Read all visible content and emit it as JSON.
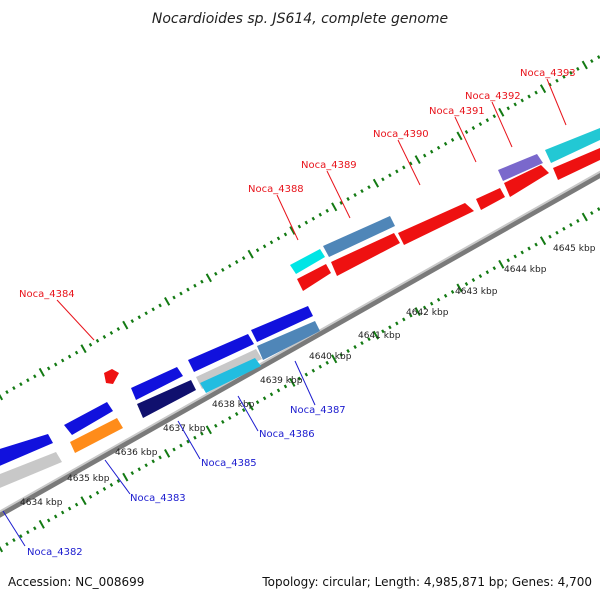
{
  "title": "Nocardioides sp. JS614, complete genome",
  "footer": {
    "accession": "Accession: NC_008699",
    "summary": "Topology: circular; Length: 4,985,871 bp; Genes: 4,700"
  },
  "colors": {
    "forward_label": "#e8141c",
    "reverse_label": "#1c1ccf",
    "backbone": "#888888",
    "tick": "#137a13"
  },
  "tick_labels": [
    "4634 kbp",
    "4635 kbp",
    "4636 kbp",
    "4637 kbp",
    "4638 kbp",
    "4639 kbp",
    "4640 kbp",
    "4641 kbp",
    "4642 kbp",
    "4643 kbp",
    "4644 kbp",
    "4645 kbp"
  ],
  "genes_forward": [
    {
      "label": "Noca_4384",
      "color": "#ee1111"
    },
    {
      "label": "Noca_4388",
      "color": "#ee1111"
    },
    {
      "label": "Noca_4389",
      "color": "#ee1111"
    },
    {
      "label": "Noca_4390",
      "color": "#ee1111"
    },
    {
      "label": "Noca_4391",
      "color": "#ee1111"
    },
    {
      "label": "Noca_4392",
      "color": "#ee1111"
    },
    {
      "label": "Noca_4393",
      "color": "#ee1111"
    }
  ],
  "genes_reverse": [
    {
      "label": "Noca_4382",
      "color": "#1111dd"
    },
    {
      "label": "Noca_4383",
      "color": "#ff8c1a"
    },
    {
      "label": "Noca_4385",
      "color": "#10106e"
    },
    {
      "label": "Noca_4386",
      "color": "#22bde0"
    },
    {
      "label": "Noca_4387",
      "color": "#4f86b8"
    }
  ]
}
